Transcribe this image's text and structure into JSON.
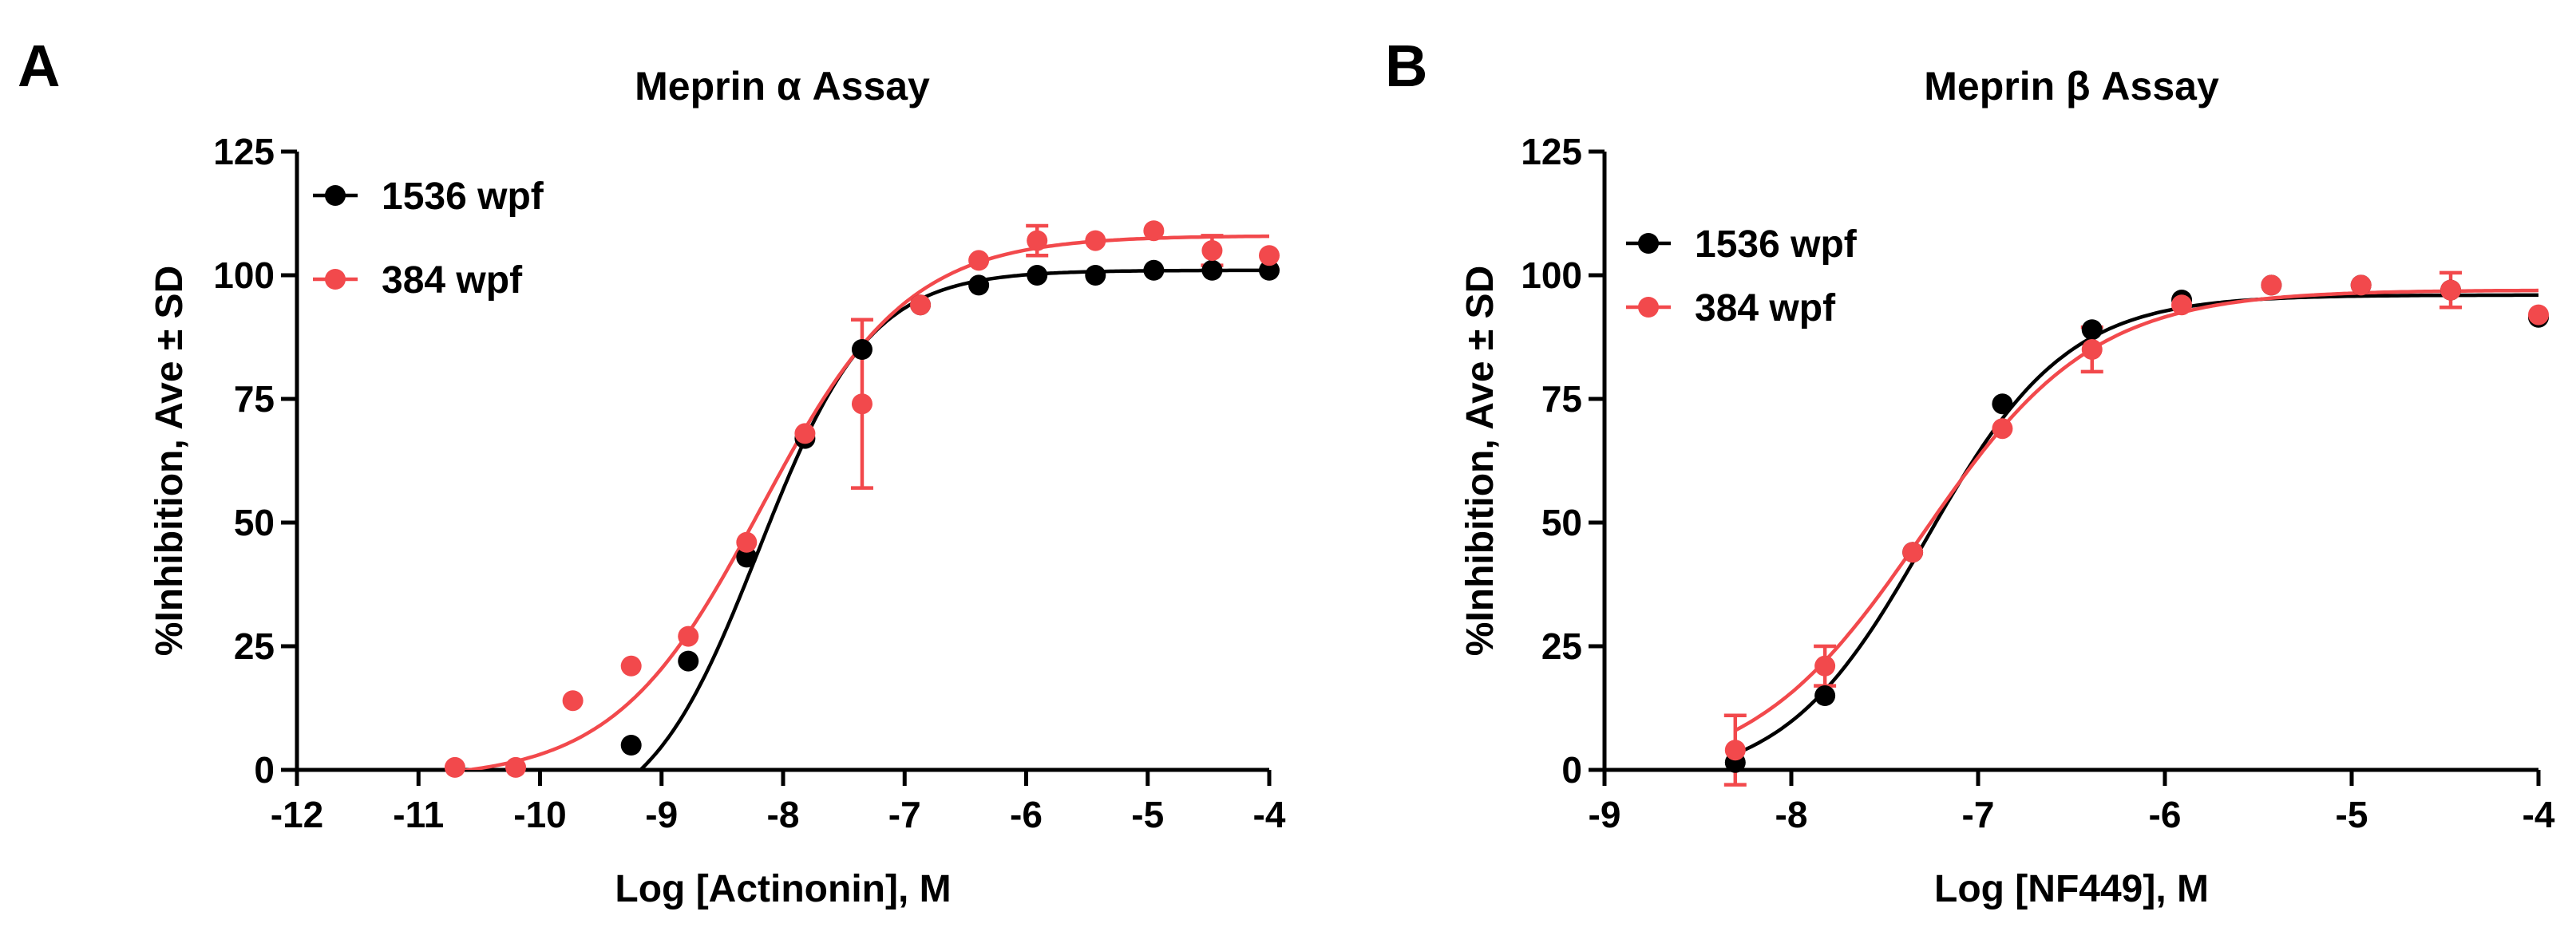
{
  "colors": {
    "black_series": "#000000",
    "red_series": "#F2494C"
  },
  "chart_data": [
    {
      "type": "scatter",
      "panel_letter": "A",
      "title": "Meprin α Assay",
      "xlabel": "Log [Actinonin], M",
      "ylabel": "%Inhibition, Ave ± SD",
      "xlim": [
        -12,
        -4
      ],
      "ylim": [
        0,
        125
      ],
      "x_ticks": [
        "-12",
        "-11",
        "-10",
        "-9",
        "-8",
        "-7",
        "-6",
        "-5",
        "-4"
      ],
      "y_ticks": [
        "0",
        "25",
        "50",
        "75",
        "100",
        "125"
      ],
      "legend_position": "top-left",
      "series": [
        {
          "name": "1536 wpf",
          "color": "#000000",
          "x": [
            -9.25,
            -8.78,
            -8.3,
            -7.82,
            -7.35,
            -6.87,
            -6.39,
            -5.91,
            -5.43,
            -4.95,
            -4.47,
            -4.0
          ],
          "y": [
            5,
            22,
            43,
            67,
            85,
            94,
            98,
            100,
            100,
            101,
            101,
            101
          ],
          "err": [
            0,
            0,
            0,
            0,
            0,
            0,
            0,
            0,
            0,
            0,
            0,
            0
          ],
          "fit": {
            "bottom": -12,
            "top": 101,
            "logIC50": -8.2,
            "hill": 0.95,
            "x_start": -9.6,
            "x_end": -4.0
          }
        },
        {
          "name": "384 wpf",
          "color": "#F2494C",
          "x": [
            -10.7,
            -10.2,
            -9.73,
            -9.25,
            -8.78,
            -8.3,
            -7.82,
            -7.35,
            -6.87,
            -6.39,
            -5.91,
            -5.43,
            -4.95,
            -4.47,
            -4.0
          ],
          "y": [
            0.5,
            0.5,
            14,
            21,
            27,
            46,
            68,
            74,
            94,
            103,
            107,
            107,
            109,
            105,
            104
          ],
          "err": [
            0,
            0,
            0,
            0,
            0,
            0,
            0,
            17,
            0,
            0,
            3,
            0,
            0,
            3,
            0
          ],
          "fit": {
            "bottom": -2,
            "top": 108,
            "logIC50": -8.18,
            "hill": 0.72,
            "x_start": -10.7,
            "x_end": -4.0
          }
        }
      ]
    },
    {
      "type": "scatter",
      "panel_letter": "B",
      "title": "Meprin β Assay",
      "xlabel": "Log [NF449], M",
      "ylabel": "%Inhibition, Ave ± SD",
      "xlim": [
        -9,
        -4
      ],
      "ylim": [
        0,
        125
      ],
      "x_ticks": [
        "-9",
        "-8",
        "-7",
        "-6",
        "-5",
        "-4"
      ],
      "y_ticks": [
        "0",
        "25",
        "50",
        "75",
        "100",
        "125"
      ],
      "legend_position": "top-left",
      "series": [
        {
          "name": "1536 wpf",
          "color": "#000000",
          "x": [
            -8.3,
            -7.82,
            -7.35,
            -6.87,
            -6.39,
            -5.91,
            -5.43,
            -4.95,
            -4.47,
            -4.0
          ],
          "y": [
            1.5,
            15,
            44,
            74,
            89,
            95,
            98,
            98,
            97,
            91.5
          ],
          "err": [
            0,
            0,
            0,
            0,
            0,
            0,
            0,
            0,
            0,
            0
          ],
          "fit": {
            "bottom": -3,
            "top": 96,
            "logIC50": -7.28,
            "hill": 1.15,
            "x_start": -8.3,
            "x_end": -4.0
          }
        },
        {
          "name": "384 wpf",
          "color": "#F2494C",
          "x": [
            -8.3,
            -7.82,
            -7.35,
            -6.87,
            -6.39,
            -5.91,
            -5.43,
            -4.95,
            -4.47,
            -4.0
          ],
          "y": [
            4,
            21,
            44,
            69,
            85,
            94,
            98,
            98,
            97,
            92
          ],
          "err": [
            7,
            4,
            0,
            0,
            4.5,
            0,
            0,
            0,
            3.5,
            0
          ],
          "fit": {
            "bottom": -2,
            "top": 97,
            "logIC50": -7.3,
            "hill": 0.95,
            "x_start": -8.3,
            "x_end": -4.0
          }
        }
      ]
    }
  ]
}
